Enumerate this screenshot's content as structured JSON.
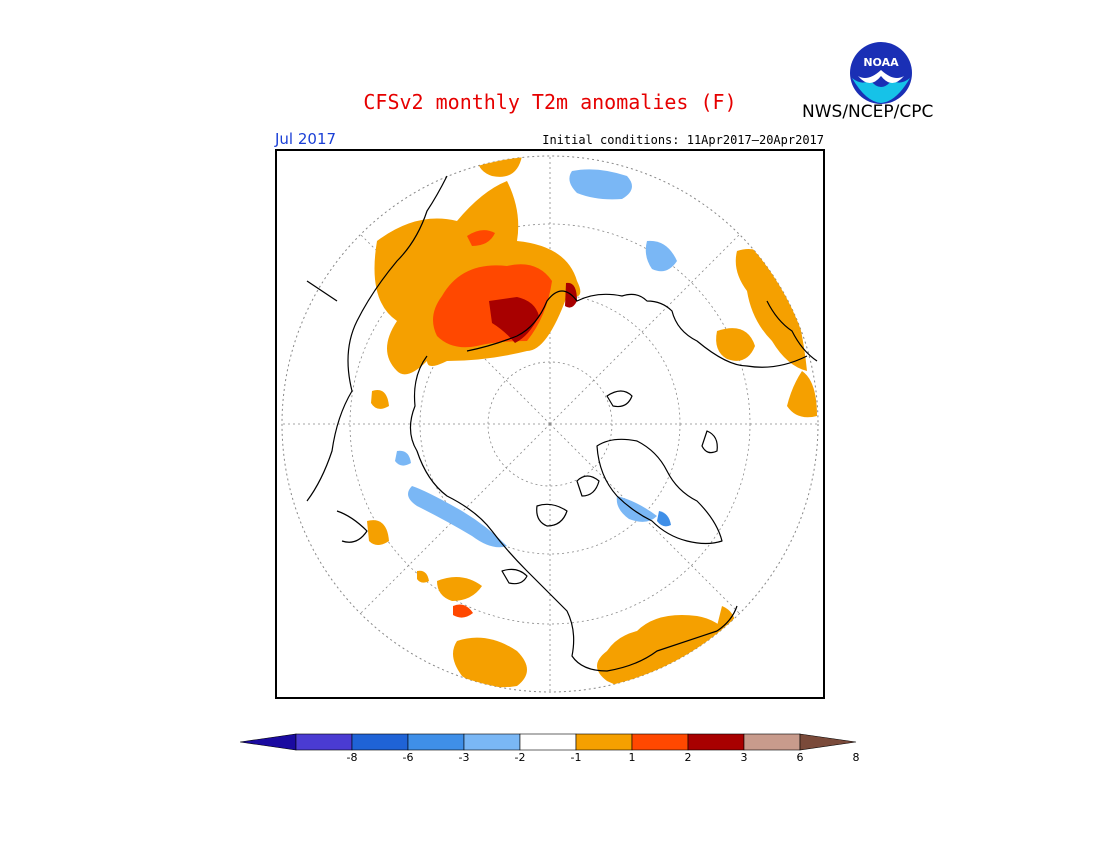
{
  "title": "CFSv2 monthly T2m anomalies (F)",
  "org": "NWS/NCEP/CPC",
  "logo_text": "NOAA",
  "target_month": "Jul 2017",
  "initial_conditions": "Initial conditions: 11Apr2017–20Apr2017",
  "colorbar": {
    "colors": [
      "#1a0aa0",
      "#4a3bd2",
      "#1f63d6",
      "#3f8fe8",
      "#7ab7f5",
      "#ffffff",
      "#f5a000",
      "#ff4800",
      "#a80000",
      "#c89b8c",
      "#7a4a3a"
    ],
    "tick_labels": [
      "-8",
      "-6",
      "-3",
      "-2",
      "-1",
      "1",
      "2",
      "3",
      "6",
      "8"
    ]
  },
  "map": {
    "projection": "north-polar-stereographic",
    "grid": "dotted latitude/longitude lines",
    "coastline_color": "#000000"
  }
}
